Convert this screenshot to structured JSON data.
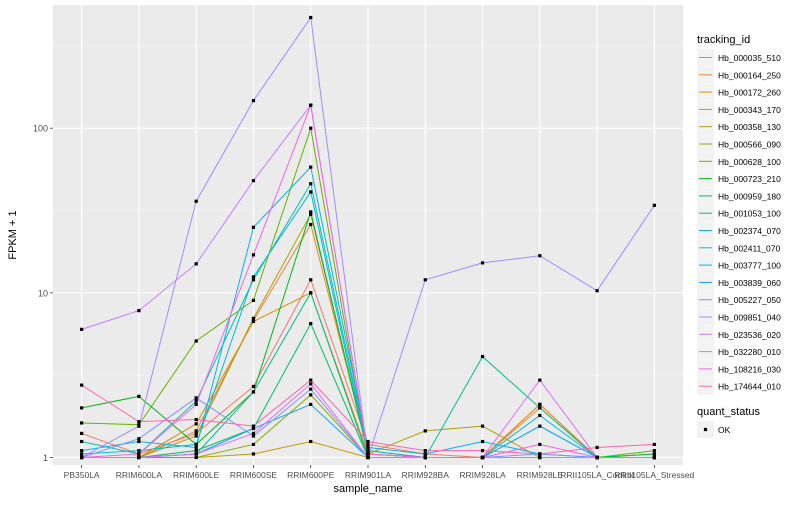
{
  "chart_data": {
    "type": "line",
    "xlabel": "sample_name",
    "ylabel": "FPKM + 1",
    "y_scale": "log10",
    "ylim": [
      0.9,
      560
    ],
    "yticks": [
      {
        "value": 1,
        "label": "1"
      },
      {
        "value": 10,
        "label": "10"
      },
      {
        "value": 100,
        "label": "100"
      }
    ],
    "categories": [
      "PB350LA",
      "RRIM600LA",
      "RRIM600LE",
      "RRIM600SE",
      "RRIM600PE",
      "RRIM901LA",
      "RRIM928BA",
      "RRIM928LA",
      "RRIM928LE",
      "RRII105LA_Control",
      "RRII105LA_Stressed"
    ],
    "grid": true,
    "background": "#ebebeb",
    "legend": {
      "title": "tracking_id",
      "placement": "right",
      "shape_title": "quant_status",
      "shape_entries": [
        "OK"
      ]
    },
    "series": [
      {
        "name": "Hb_000035_510",
        "color": "#F8766D",
        "values": [
          1.4,
          1.05,
          1.4,
          2.7,
          12.0,
          1.2,
          1.05,
          1.0,
          2.1,
          1.0,
          1.0
        ]
      },
      {
        "name": "Hb_000164_250",
        "color": "#EC8239",
        "values": [
          1.0,
          1.0,
          1.45,
          6.8,
          26.0,
          1.1,
          1.0,
          1.0,
          2.0,
          1.0,
          1.0
        ]
      },
      {
        "name": "Hb_000172_260",
        "color": "#DB8E00",
        "values": [
          1.0,
          1.0,
          1.6,
          6.7,
          10.0,
          1.05,
          1.0,
          1.0,
          2.1,
          1.0,
          1.0
        ]
      },
      {
        "name": "Hb_000343_170",
        "color": "#C79800",
        "values": [
          1.0,
          1.0,
          1.0,
          1.05,
          1.25,
          1.0,
          1.0,
          1.0,
          1.0,
          1.0,
          1.0
        ]
      },
      {
        "name": "Hb_000358_130",
        "color": "#AEA200",
        "values": [
          1.0,
          1.0,
          1.35,
          7.0,
          30.0,
          1.05,
          1.45,
          1.55,
          1.0,
          1.0,
          1.05
        ]
      },
      {
        "name": "Hb_000566_090",
        "color": "#8FAA00",
        "values": [
          1.0,
          1.0,
          1.0,
          1.2,
          2.4,
          1.0,
          1.0,
          1.0,
          1.0,
          1.0,
          1.0
        ]
      },
      {
        "name": "Hb_000628_100",
        "color": "#64B200",
        "values": [
          1.62,
          1.58,
          5.1,
          9.0,
          100.0,
          1.0,
          1.0,
          1.0,
          1.0,
          1.0,
          1.1
        ]
      },
      {
        "name": "Hb_000723_210",
        "color": "#00B81B",
        "values": [
          2.0,
          2.35,
          1.2,
          2.5,
          31.0,
          1.05,
          1.0,
          1.0,
          1.0,
          1.0,
          1.0
        ]
      },
      {
        "name": "Hb_000959_180",
        "color": "#00BD5C",
        "values": [
          1.0,
          1.0,
          1.1,
          1.5,
          6.5,
          1.0,
          1.0,
          1.0,
          1.0,
          1.0,
          1.05
        ]
      },
      {
        "name": "Hb_001053_100",
        "color": "#00C08E",
        "values": [
          1.0,
          1.0,
          1.05,
          2.5,
          10.0,
          1.0,
          1.0,
          4.1,
          2.0,
          1.0,
          1.0
        ]
      },
      {
        "name": "Hb_002374_070",
        "color": "#00C1B2",
        "values": [
          1.25,
          1.05,
          2.2,
          12.0,
          46.0,
          1.1,
          1.0,
          1.0,
          1.0,
          1.0,
          1.0
        ]
      },
      {
        "name": "Hb_002411_070",
        "color": "#00BCD6",
        "values": [
          1.05,
          1.1,
          1.2,
          12.5,
          41.0,
          1.05,
          1.0,
          1.0,
          1.8,
          1.0,
          1.0
        ]
      },
      {
        "name": "Hb_003777_100",
        "color": "#00B5EE",
        "values": [
          1.1,
          1.25,
          1.15,
          25.0,
          58.0,
          1.15,
          1.05,
          1.25,
          1.05,
          1.0,
          1.0
        ]
      },
      {
        "name": "Hb_003839_060",
        "color": "#00A6FF",
        "values": [
          1.0,
          1.0,
          1.05,
          1.5,
          2.1,
          1.0,
          1.0,
          1.0,
          1.55,
          1.0,
          1.0
        ]
      },
      {
        "name": "Hb_005227_050",
        "color": "#7F96FF",
        "values": [
          1.0,
          1.3,
          2.3,
          1.35,
          2.6,
          1.0,
          1.0,
          1.0,
          1.05,
          1.0,
          1.0
        ]
      },
      {
        "name": "Hb_009851_040",
        "color": "#A58AFF",
        "values": [
          1.0,
          1.55,
          36.0,
          147.0,
          470.0,
          1.0,
          12.0,
          15.2,
          16.8,
          10.3,
          34.0
        ]
      },
      {
        "name": "Hb_023536_020",
        "color": "#C77CFF",
        "values": [
          6.0,
          7.8,
          15.0,
          48.0,
          138.0,
          1.05,
          1.0,
          1.0,
          1.0,
          1.0,
          1.0
        ]
      },
      {
        "name": "Hb_032280_010",
        "color": "#E36EF6",
        "values": [
          1.0,
          1.0,
          1.05,
          1.4,
          2.8,
          1.0,
          1.0,
          1.0,
          2.95,
          1.0,
          1.0
        ]
      },
      {
        "name": "Hb_108216_030",
        "color": "#F564E3",
        "values": [
          1.0,
          1.05,
          2.1,
          17.0,
          138.0,
          1.05,
          1.0,
          1.0,
          1.2,
          1.0,
          1.0
        ]
      },
      {
        "name": "Hb_174644_010",
        "color": "#FF64B0",
        "values": [
          2.75,
          1.65,
          1.7,
          1.55,
          2.95,
          1.25,
          1.1,
          1.1,
          1.05,
          1.15,
          1.2
        ]
      }
    ]
  }
}
